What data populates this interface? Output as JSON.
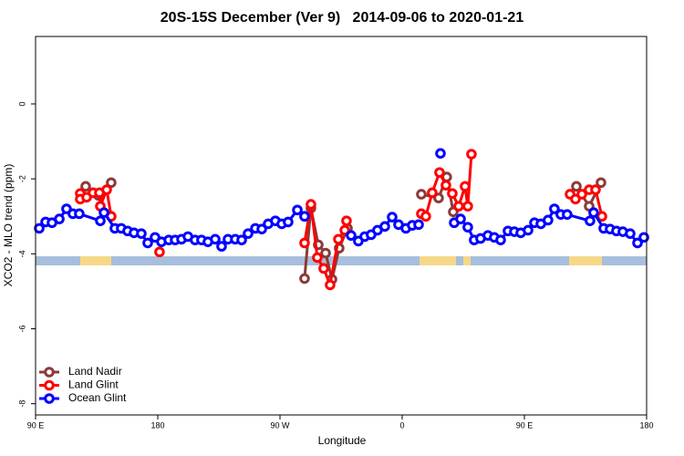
{
  "chart_data": {
    "type": "line",
    "title": "20S-15S December (Ver 9)   2014-09-06 to 2020-01-21",
    "xlabel": "Longitude",
    "ylabel": "XCO2 - MLO trend (ppm)",
    "xlim": [
      90,
      540
    ],
    "ylim": [
      -8.3,
      1.8
    ],
    "xticks": [
      {
        "value": 90,
        "label": "90 E"
      },
      180,
      {
        "value": 270,
        "label": "90 W"
      },
      0,
      {
        "value": 450,
        "label": "90 E"
      },
      {
        "value": 540,
        "label": "180"
      }
    ],
    "yticks": [
      0,
      -2,
      -4,
      -6,
      -8
    ],
    "legend": "bottom-left",
    "series": [
      {
        "name": "Land Nadir",
        "color": "#8b3a3a",
        "x": [
          126.9,
          136.3,
          145.7,
          null,
          288.1,
          292.8,
          298.2,
          303.6,
          308.3,
          313.6,
          319.7,
          null,
          374.1,
          386.8,
          392.8,
          397.6,
          null,
          488.3,
          497.7,
          506.4
        ],
        "values": [
          -2.2,
          -2.44,
          -2.1,
          null,
          -4.66,
          -2.78,
          -3.76,
          -3.98,
          -4.68,
          -3.85,
          -3.32,
          null,
          -2.41,
          -2.51,
          -1.95,
          -2.88,
          null,
          -2.2,
          -2.73,
          -2.1
        ]
      },
      {
        "name": "Land Glint",
        "color": "#ff0000",
        "x": [
          122.9,
          122.9,
          127.6,
          132.3,
          137.0,
          137.7,
          142.4,
          145.7,
          null,
          181.3,
          null,
          288.1,
          292.8,
          297.5,
          302.2,
          306.9,
          313.0,
          317.7,
          319.0,
          null,
          374.1,
          377.4,
          382.1,
          387.5,
          392.2,
          396.9,
          401.6,
          406.3,
          408.3,
          411.0,
          null,
          483.6,
          487.6,
          492.3,
          497.7,
          502.4,
          507.1
        ],
        "values": [
          -2.39,
          -2.54,
          -2.49,
          -2.37,
          -2.37,
          -2.73,
          -2.29,
          -3.0,
          null,
          -3.95,
          null,
          -3.71,
          -2.68,
          -4.1,
          -4.39,
          -4.83,
          -3.61,
          -3.37,
          -3.12,
          null,
          -2.93,
          -3.0,
          -2.37,
          -1.83,
          -2.17,
          -2.39,
          -2.73,
          -2.2,
          -2.73,
          -1.34,
          null,
          -2.41,
          -2.54,
          -2.41,
          -2.29,
          -2.29,
          -3.0
        ]
      },
      {
        "name": "Ocean Glint",
        "color": "#0000ff",
        "x": [
          92.7,
          97.4,
          102.1,
          107.5,
          112.8,
          117.5,
          122.2,
          137.7,
          140.4,
          148.4,
          153.1,
          157.8,
          162.5,
          167.9,
          172.6,
          178.0,
          182.7,
          188.1,
          192.8,
          197.5,
          202.2,
          207.5,
          212.2,
          216.9,
          222.3,
          227.0,
          231.7,
          237.1,
          241.8,
          246.5,
          251.9,
          256.6,
          261.3,
          266.6,
          271.3,
          276.0,
          282.8,
          288.1,
          null,
          322.4,
          327.7,
          332.4,
          337.1,
          341.8,
          347.2,
          352.6,
          357.3,
          362.7,
          367.4,
          372.1,
          null,
          388.2,
          null,
          398.3,
          403.0,
          408.3,
          413.0,
          417.7,
          423.1,
          427.8,
          432.5,
          437.9,
          442.6,
          447.3,
          452.7,
          457.4,
          462.1,
          467.4,
          472.1,
          476.8,
          481.5,
          498.3,
          501.0,
          508.4,
          513.1,
          517.8,
          522.5,
          527.9,
          533.3,
          538.0
        ],
        "values": [
          -3.32,
          -3.15,
          -3.17,
          -3.07,
          -2.8,
          -2.93,
          -2.93,
          -3.12,
          -2.9,
          -3.32,
          -3.32,
          -3.39,
          -3.44,
          -3.46,
          -3.71,
          -3.56,
          -3.68,
          -3.63,
          -3.63,
          -3.61,
          -3.54,
          -3.63,
          -3.63,
          -3.68,
          -3.61,
          -3.8,
          -3.61,
          -3.61,
          -3.63,
          -3.46,
          -3.32,
          -3.34,
          -3.2,
          -3.12,
          -3.2,
          -3.15,
          -2.83,
          -3.0,
          null,
          -3.51,
          -3.66,
          -3.54,
          -3.49,
          -3.37,
          -3.27,
          -3.02,
          -3.22,
          -3.32,
          -3.24,
          -3.22,
          null,
          -1.32,
          null,
          -3.17,
          -3.07,
          -3.29,
          -3.63,
          -3.59,
          -3.51,
          -3.56,
          -3.63,
          -3.39,
          -3.41,
          -3.44,
          -3.37,
          -3.17,
          -3.2,
          -3.1,
          -2.8,
          -2.95,
          -2.95,
          -3.12,
          -2.9,
          -3.32,
          -3.34,
          -3.39,
          -3.41,
          -3.46,
          -3.71,
          -3.56
        ]
      }
    ]
  }
}
